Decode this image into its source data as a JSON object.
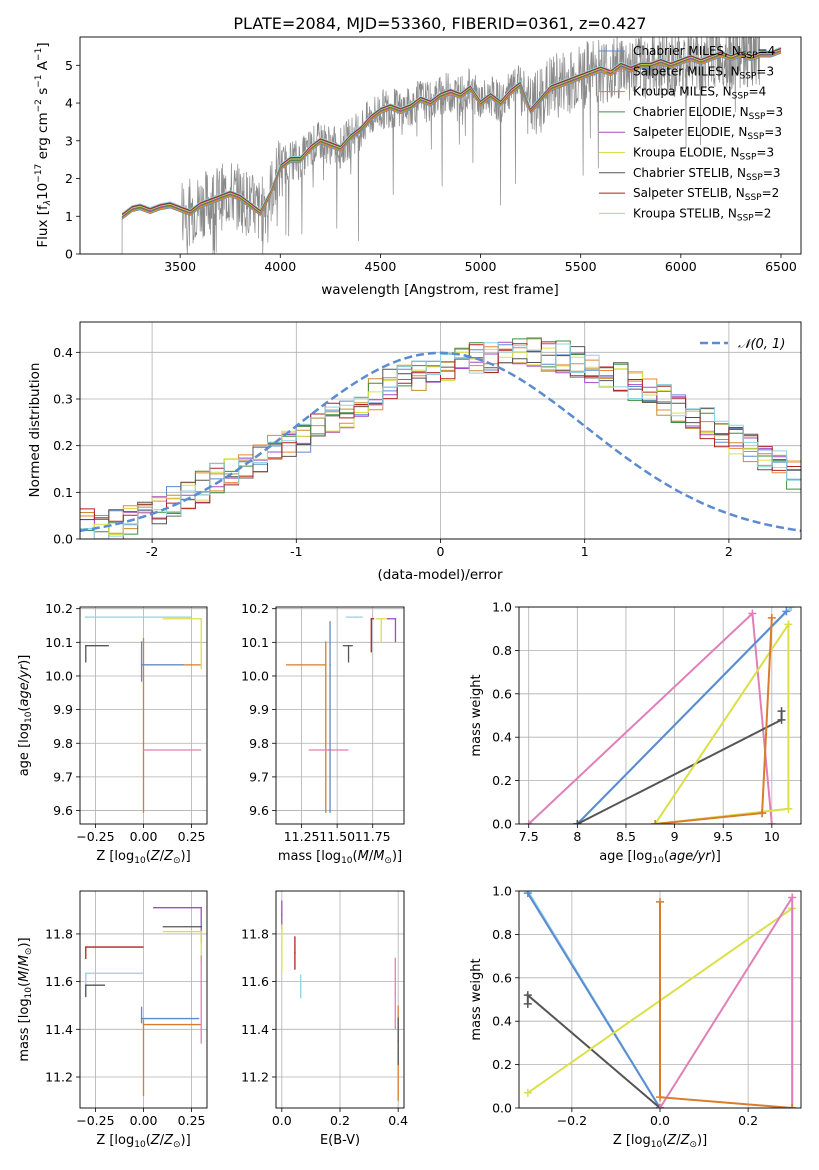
{
  "figure_title": "PLATE=2084, MJD=53360, FIBERID=0361, z=0.427",
  "colors": {
    "chabrier_miles": "#5b8bd0",
    "salpeter_miles": "#e8873a",
    "kroupa_miles": "#cc8b2f",
    "chabrier_elodie": "#3c8f3c",
    "salpeter_elodie": "#a34bc4",
    "kroupa_elodie": "#d9e04a",
    "chabrier_stelib": "#555555",
    "salpeter_stelib": "#b22222",
    "kroupa_stelib": "#8fd3e0",
    "pink": "#e17fb8",
    "orange": "#d97c2b",
    "gray": "#8a8a8a",
    "normal": "#5b8bd0",
    "grid": "#b0b0b0"
  },
  "chart_data": [
    {
      "id": "spectrum",
      "type": "line",
      "xlabel": "wavelength [Angstrom, rest frame]",
      "ylabel": "Flux [f",
      "ylabel_rest": "10",
      "ylabel_units": " erg cm",
      "ylabel_tail": " s",
      "xlim": [
        3000,
        6600
      ],
      "ylim": [
        0,
        5.75
      ],
      "xticks": [
        3500,
        4000,
        4500,
        5000,
        5500,
        6000,
        6500
      ],
      "yticks": [
        0,
        1,
        2,
        3,
        4,
        5
      ],
      "legend_position": "top-right",
      "legend": [
        {
          "name": "Chabrier MILES, N",
          "sub": "SSP",
          "n": "=4",
          "color_key": "chabrier_miles"
        },
        {
          "name": "Salpeter MILES, N",
          "sub": "SSP",
          "n": "=3",
          "color_key": "salpeter_miles"
        },
        {
          "name": "Kroupa MILES, N",
          "sub": "SSP",
          "n": "=4",
          "color_key": "kroupa_miles"
        },
        {
          "name": "Chabrier ELODIE, N",
          "sub": "SSP",
          "n": "=3",
          "color_key": "chabrier_elodie"
        },
        {
          "name": "Salpeter ELODIE, N",
          "sub": "SSP",
          "n": "=3",
          "color_key": "salpeter_elodie"
        },
        {
          "name": "Kroupa ELODIE, N",
          "sub": "SSP",
          "n": "=3",
          "color_key": "kroupa_elodie"
        },
        {
          "name": "Chabrier STELIB, N",
          "sub": "SSP",
          "n": "=3",
          "color_key": "chabrier_stelib"
        },
        {
          "name": "Salpeter STELIB, N",
          "sub": "SSP",
          "n": "=2",
          "color_key": "salpeter_stelib"
        },
        {
          "name": "Kroupa STELIB, N",
          "sub": "SSP",
          "n": "=2",
          "color_key": "kroupa_stelib"
        }
      ],
      "model_x": [
        3210,
        3260,
        3300,
        3350,
        3400,
        3450,
        3500,
        3550,
        3600,
        3650,
        3700,
        3750,
        3800,
        3850,
        3900,
        3950,
        4000,
        4050,
        4100,
        4150,
        4200,
        4250,
        4300,
        4350,
        4400,
        4450,
        4500,
        4550,
        4600,
        4650,
        4700,
        4750,
        4800,
        4850,
        4900,
        4950,
        5000,
        5050,
        5100,
        5150,
        5200,
        5250,
        5300,
        5350,
        5400,
        5450,
        5500,
        5550,
        5600,
        5650,
        5700,
        5750,
        5800,
        5850,
        5900,
        5950,
        6000,
        6050,
        6100,
        6150,
        6200,
        6250,
        6300,
        6350,
        6400,
        6450,
        6500
      ],
      "model_y": [
        1.0,
        1.2,
        1.25,
        1.15,
        1.25,
        1.3,
        1.2,
        1.1,
        1.3,
        1.4,
        1.5,
        1.6,
        1.5,
        1.3,
        1.1,
        1.6,
        2.3,
        2.5,
        2.5,
        2.8,
        3.0,
        2.9,
        2.8,
        3.1,
        3.3,
        3.6,
        3.8,
        3.9,
        3.8,
        3.9,
        4.1,
        4.0,
        4.2,
        4.3,
        4.2,
        4.4,
        4.0,
        4.2,
        4.0,
        4.3,
        4.5,
        3.8,
        4.1,
        4.4,
        4.5,
        4.6,
        4.7,
        4.8,
        4.9,
        4.8,
        5.0,
        4.9,
        5.0,
        5.0,
        5.1,
        5.0,
        5.1,
        5.2,
        5.1,
        5.2,
        5.3,
        5.2,
        5.3,
        5.2,
        5.3,
        5.3,
        5.4
      ],
      "data_x_range": [
        3210,
        6400
      ],
      "data_spike_start": 3510
    },
    {
      "id": "residual-histogram",
      "type": "bar",
      "xlabel": "(data-model)/error",
      "ylabel": "Normed distribution",
      "xlim": [
        -2.5,
        2.5
      ],
      "ylim": [
        0,
        0.465
      ],
      "xticks": [
        -2,
        -1,
        0,
        1,
        2
      ],
      "yticks": [
        0.0,
        0.1,
        0.2,
        0.3,
        0.4
      ],
      "legend_position": "top-right",
      "legend": [
        {
          "name": "𝒩(0, 1)",
          "color_key": "normal"
        }
      ],
      "bin_width": 0.1,
      "bins_start": -2.5,
      "series_values": [
        [
          0.03,
          0.02,
          0.03,
          0.04,
          0.05,
          0.06,
          0.08,
          0.09,
          0.11,
          0.13,
          0.14,
          0.15,
          0.17,
          0.19,
          0.21,
          0.22,
          0.24,
          0.26,
          0.27,
          0.29,
          0.31,
          0.33,
          0.34,
          0.35,
          0.36,
          0.37,
          0.38,
          0.39,
          0.39,
          0.4,
          0.4,
          0.4,
          0.39,
          0.39,
          0.38,
          0.37,
          0.36,
          0.35,
          0.33,
          0.32,
          0.3,
          0.28,
          0.27,
          0.25,
          0.23,
          0.21,
          0.2,
          0.18,
          0.16,
          0.14
        ]
      ],
      "normal_curve": {
        "mu": 0,
        "sigma": 1
      }
    },
    {
      "id": "age-vs-Z",
      "type": "scatter",
      "xlabel": "Z [log",
      "xlabel_tail": "(Z/Z",
      "ylabel": "age  [log",
      "ylabel_tail": "(age/yr)]",
      "xlim": [
        -0.33,
        0.33
      ],
      "ylim": [
        9.56,
        10.205
      ],
      "xticks": [
        -0.25,
        0.0,
        0.25
      ],
      "xtick_labels": [
        "−0.25",
        "0.00",
        "0.25"
      ],
      "yticks": [
        9.6,
        9.7,
        9.8,
        9.9,
        10.0,
        10.1,
        10.2
      ],
      "points": [
        {
          "x": 0.0,
          "y": 10.033,
          "xerr": [
            0.0,
            0.3
          ],
          "yerr": [
            0.44,
            0.08
          ],
          "color_key": "orange"
        },
        {
          "x": 0.0,
          "y": 9.78,
          "xerr": [
            0.0,
            0.3
          ],
          "yerr": [
            0.0,
            0.0
          ],
          "color_key": "pink"
        },
        {
          "x": -0.01,
          "y": 10.033,
          "xerr": [
            0.0,
            0.22
          ],
          "yerr": [
            0.05,
            0.07
          ],
          "color_key": "chabrier_miles"
        },
        {
          "x": -0.3,
          "y": 10.175,
          "xerr": [
            0.0,
            0.55
          ],
          "yerr": [
            0.0,
            0.0
          ],
          "color_key": "kroupa_stelib"
        },
        {
          "x": 0.3,
          "y": 10.17,
          "xerr": [
            0.2,
            0.0
          ],
          "yerr": [
            0.15,
            0.0
          ],
          "color_key": "kroupa_elodie"
        },
        {
          "x": -0.3,
          "y": 10.09,
          "xerr": [
            0.0,
            0.12
          ],
          "yerr": [
            0.05,
            0.0
          ],
          "color_key": "chabrier_stelib"
        }
      ]
    },
    {
      "id": "age-vs-mass",
      "type": "scatter",
      "xlabel": "mass [log",
      "xlabel_tail": "(M/M",
      "xlim": [
        11.07,
        11.97
      ],
      "ylim": [
        9.56,
        10.205
      ],
      "xticks": [
        11.25,
        11.5,
        11.75
      ],
      "xtick_labels": [
        "11.25",
        "11.50",
        "11.75"
      ],
      "yticks": [
        9.6,
        9.7,
        9.8,
        9.9,
        10.0,
        10.1,
        10.2
      ],
      "points": [
        {
          "x": 11.42,
          "y": 10.033,
          "xerr": [
            0.28,
            0.0
          ],
          "yerr": [
            0.44,
            0.07
          ],
          "color_key": "orange"
        },
        {
          "x": 11.44,
          "y": 9.78,
          "xerr": [
            0.14,
            0.14
          ],
          "yerr": [
            0.0,
            0.0
          ],
          "color_key": "pink"
        },
        {
          "x": 11.45,
          "y": 10.033,
          "xerr": [
            0.0,
            0.0
          ],
          "yerr": [
            0.44,
            0.13
          ],
          "color_key": "chabrier_miles"
        },
        {
          "x": 11.63,
          "y": 10.175,
          "xerr": [
            0.07,
            0.05
          ],
          "yerr": [
            0.0,
            0.0
          ],
          "color_key": "kroupa_stelib"
        },
        {
          "x": 11.81,
          "y": 10.17,
          "xerr": [
            0.04,
            0.06
          ],
          "yerr": [
            0.07,
            0.0
          ],
          "color_key": "kroupa_elodie"
        },
        {
          "x": 11.58,
          "y": 10.09,
          "xerr": [
            0.04,
            0.03
          ],
          "yerr": [
            0.05,
            0.0
          ],
          "color_key": "chabrier_stelib"
        },
        {
          "x": 11.74,
          "y": 10.17,
          "xerr": [
            0.0,
            0.02
          ],
          "yerr": [
            0.1,
            0.0
          ],
          "color_key": "salpeter_stelib"
        },
        {
          "x": 11.91,
          "y": 10.17,
          "xerr": [
            0.06,
            0.0
          ],
          "yerr": [
            0.07,
            0.0
          ],
          "color_key": "salpeter_elodie"
        }
      ]
    },
    {
      "id": "massweight-vs-age",
      "type": "line",
      "xlabel": "age  [log",
      "xlabel_tail": "(age/yr)]",
      "ylabel": "mass weight",
      "xlim": [
        7.4,
        10.3
      ],
      "ylim": [
        0,
        1
      ],
      "xticks": [
        7.5,
        8.0,
        8.5,
        9.0,
        9.5,
        10.0
      ],
      "yticks": [
        0.0,
        0.2,
        0.4,
        0.6,
        0.8,
        1.0
      ],
      "series": [
        {
          "color_key": "pink",
          "x": [
            7.5,
            9.8,
            10.0
          ],
          "y": [
            0.0,
            0.97,
            0.0
          ]
        },
        {
          "color_key": "kroupa_stelib",
          "x": [
            8.0,
            10.2
          ],
          "y": [
            0.0,
            1.0
          ]
        },
        {
          "color_key": "chabrier_miles",
          "x": [
            8.0,
            10.15
          ],
          "y": [
            0.0,
            0.98
          ]
        },
        {
          "color_key": "chabrier_stelib",
          "x": [
            8.0,
            10.1,
            10.1
          ],
          "y": [
            0.0,
            0.48,
            0.52
          ]
        },
        {
          "color_key": "kroupa_elodie",
          "x": [
            8.8,
            10.17,
            10.17,
            8.8
          ],
          "y": [
            0.0,
            0.92,
            0.07,
            0.0
          ]
        },
        {
          "color_key": "orange",
          "x": [
            8.8,
            9.9,
            10.0,
            9.9
          ],
          "y": [
            0.0,
            0.05,
            0.95,
            0.05
          ]
        }
      ]
    },
    {
      "id": "mass-vs-Z",
      "type": "scatter",
      "xlabel": "Z [log",
      "xlabel_tail": "(Z/Z",
      "ylabel": "mass [log",
      "ylabel_tail": "(M/M",
      "xlim": [
        -0.33,
        0.33
      ],
      "ylim": [
        11.07,
        11.98
      ],
      "xticks": [
        -0.25,
        0.0,
        0.25
      ],
      "xtick_labels": [
        "−0.25",
        "0.00",
        "0.25"
      ],
      "yticks": [
        11.2,
        11.4,
        11.6,
        11.8
      ],
      "points": [
        {
          "x": 0.0,
          "y": 11.42,
          "xerr": [
            0.0,
            0.3
          ],
          "yerr": [
            0.3,
            0.02
          ],
          "color_key": "orange"
        },
        {
          "x": -0.01,
          "y": 11.445,
          "xerr": [
            0.0,
            0.3
          ],
          "yerr": [
            0.02,
            0.05
          ],
          "color_key": "chabrier_miles"
        },
        {
          "x": -0.3,
          "y": 11.635,
          "xerr": [
            0.0,
            0.3
          ],
          "yerr": [
            0.1,
            0.0
          ],
          "color_key": "kroupa_stelib"
        },
        {
          "x": -0.3,
          "y": 11.745,
          "xerr": [
            0.0,
            0.3
          ],
          "yerr": [
            0.05,
            0.0
          ],
          "color_key": "salpeter_stelib"
        },
        {
          "x": 0.3,
          "y": 11.91,
          "xerr": [
            0.25,
            0.0
          ],
          "yerr": [
            0.15,
            0.0
          ],
          "color_key": "salpeter_elodie"
        },
        {
          "x": 0.3,
          "y": 11.81,
          "xerr": [
            0.2,
            0.0
          ],
          "yerr": [
            0.14,
            0.0
          ],
          "color_key": "kroupa_elodie"
        },
        {
          "x": 0.3,
          "y": 11.83,
          "xerr": [
            0.2,
            0.0
          ],
          "yerr": [
            0.0,
            0.0
          ],
          "color_key": "chabrier_stelib"
        },
        {
          "x": -0.3,
          "y": 11.585,
          "xerr": [
            0.0,
            0.1
          ],
          "yerr": [
            0.05,
            0.0
          ],
          "color_key": "chabrier_stelib"
        },
        {
          "x": 0.3,
          "y": 11.6,
          "xerr": [
            0.0,
            0.0
          ],
          "yerr": [
            0.26,
            0.11
          ],
          "color_key": "pink"
        }
      ]
    },
    {
      "id": "mass-vs-ebv",
      "type": "scatter",
      "xlabel": "E(B-V)",
      "xlim": [
        -0.02,
        0.42
      ],
      "ylim": [
        11.07,
        11.98
      ],
      "xticks": [
        0.0,
        0.2,
        0.4
      ],
      "xtick_labels": [
        "0.0",
        "0.2",
        "0.4"
      ],
      "yticks": [
        11.2,
        11.4,
        11.6,
        11.8
      ],
      "points": [
        {
          "x": 0.0,
          "y": 11.88,
          "xerr": [
            0,
            0
          ],
          "yerr": [
            0.06,
            0.06
          ],
          "color_key": "salpeter_elodie"
        },
        {
          "x": 0.0,
          "y": 11.74,
          "xerr": [
            0,
            0
          ],
          "yerr": [
            0.1,
            0.1
          ],
          "color_key": "kroupa_elodie"
        },
        {
          "x": 0.045,
          "y": 11.72,
          "xerr": [
            0,
            0
          ],
          "yerr": [
            0.07,
            0.07
          ],
          "color_key": "salpeter_stelib"
        },
        {
          "x": 0.065,
          "y": 11.58,
          "xerr": [
            0,
            0
          ],
          "yerr": [
            0.05,
            0.05
          ],
          "color_key": "kroupa_stelib"
        },
        {
          "x": 0.39,
          "y": 11.55,
          "xerr": [
            0,
            0
          ],
          "yerr": [
            0.15,
            0.15
          ],
          "color_key": "pink"
        },
        {
          "x": 0.4,
          "y": 11.3,
          "xerr": [
            0,
            0
          ],
          "yerr": [
            0.2,
            0.2
          ],
          "color_key": "orange"
        },
        {
          "x": 0.4,
          "y": 11.35,
          "xerr": [
            0,
            0
          ],
          "yerr": [
            0.1,
            0.1
          ],
          "color_key": "chabrier_stelib"
        }
      ]
    },
    {
      "id": "massweight-vs-Z",
      "type": "line",
      "xlabel": "Z [log",
      "xlabel_tail": "(Z/Z",
      "ylabel": "mass weight",
      "xlim": [
        -0.32,
        0.32
      ],
      "ylim": [
        0,
        1
      ],
      "xticks": [
        -0.2,
        0.0,
        0.2
      ],
      "xtick_labels": [
        "−0.2",
        "0.0",
        "0.2"
      ],
      "yticks": [
        0.0,
        0.2,
        0.4,
        0.6,
        0.8,
        1.0
      ],
      "series": [
        {
          "color_key": "kroupa_stelib",
          "x": [
            -0.3,
            0.0
          ],
          "y": [
            1.0,
            0.0
          ]
        },
        {
          "color_key": "chabrier_miles",
          "x": [
            -0.3,
            0.0
          ],
          "y": [
            0.99,
            0.0
          ]
        },
        {
          "color_key": "chabrier_stelib",
          "x": [
            -0.3,
            -0.3,
            0.0
          ],
          "y": [
            0.48,
            0.52,
            0.0
          ]
        },
        {
          "color_key": "kroupa_elodie",
          "x": [
            -0.3,
            0.3,
            0.3
          ],
          "y": [
            0.07,
            0.92,
            0.0
          ]
        },
        {
          "color_key": "pink",
          "x": [
            0.0,
            0.3,
            0.3
          ],
          "y": [
            0.0,
            0.97,
            0.0
          ]
        },
        {
          "color_key": "orange",
          "x": [
            0.0,
            0.0,
            0.3
          ],
          "y": [
            0.95,
            0.05,
            0.0
          ]
        }
      ]
    }
  ]
}
